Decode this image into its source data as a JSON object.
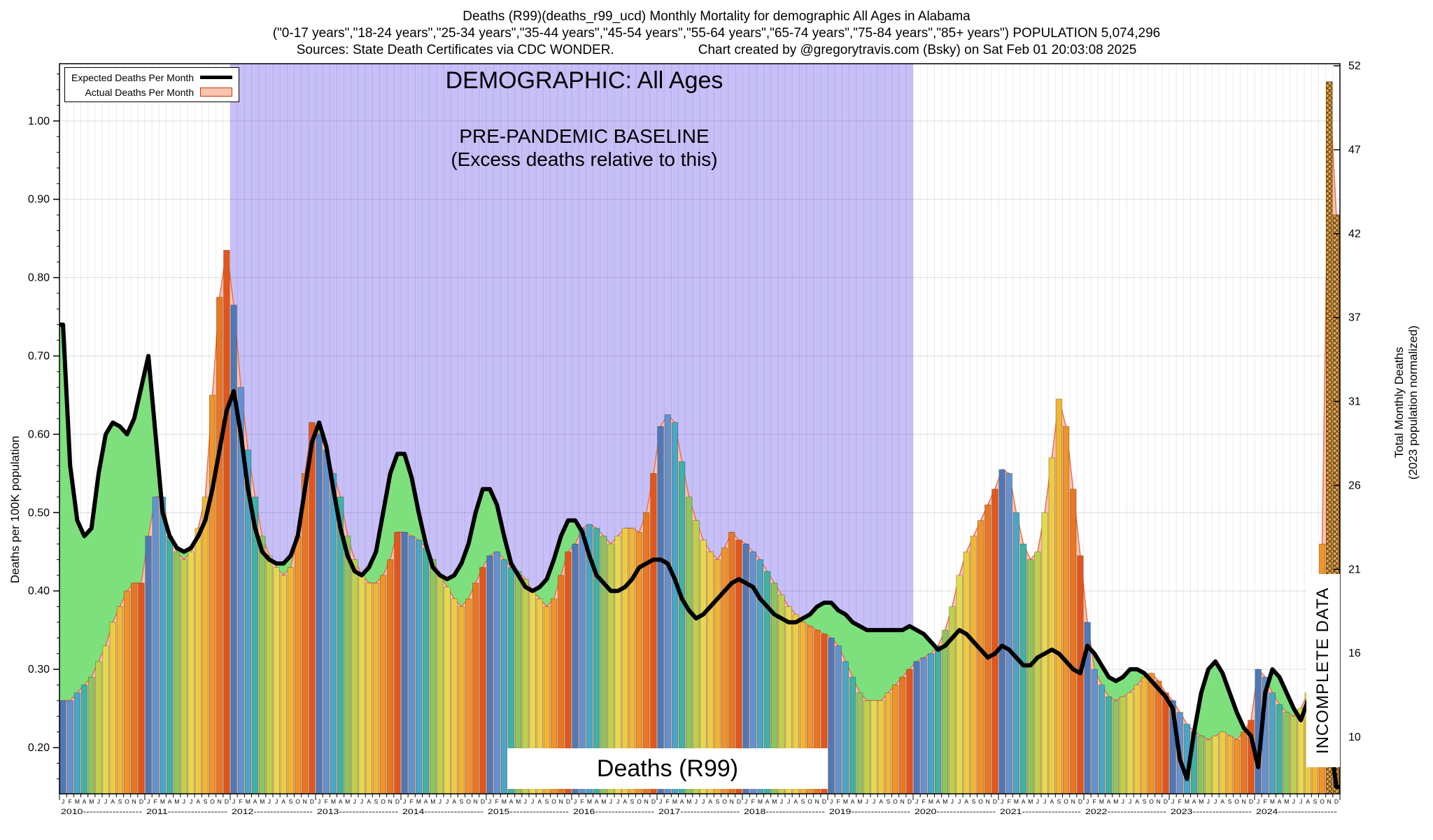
{
  "header": {
    "title_line1": "Deaths (R99)(deaths_r99_ucd) Monthly Mortality for demographic All Ages in Alabama",
    "title_line2": "(\"0-17 years\",\"18-24 years\",\"25-34 years\",\"35-44 years\",\"45-54 years\",\"55-64 years\",\"65-74 years\",\"75-84 years\",\"85+ years\") POPULATION 5,074,296",
    "sources": "Sources: State Death Certificates via CDC WONDER.",
    "credit": "Chart created by @gregorytravis.com (Bsky) on Sat Feb 01 20:03:08 2025"
  },
  "legend": {
    "expected_label": "Expected Deaths Per Month",
    "actual_label": "Actual Deaths Per Month"
  },
  "annotations": {
    "demographic": "DEMOGRAPHIC: All Ages",
    "baseline_line1": "PRE-PANDEMIC BASELINE",
    "baseline_line2": "(Excess deaths relative to this)",
    "series_label": "Deaths (R99)",
    "incomplete_label": "INCOMPLETE DATA"
  },
  "axes": {
    "left_label": "Deaths per 100K population",
    "right_label_line1": "Total Monthly Deaths",
    "right_label_line2": "(2023 population normalized)",
    "left_ticks": [
      "0.20",
      "0.30",
      "0.40",
      "0.50",
      "0.60",
      "0.70",
      "0.80",
      "0.90",
      "1.00"
    ],
    "right_ticks": [
      "52",
      "47",
      "42",
      "37",
      "31",
      "26",
      "21",
      "16",
      "10"
    ]
  },
  "colors": {
    "baseline_bg": "#c7bff7",
    "deficit_green": "#7de07d",
    "actual_fill": "#f9c4b0",
    "actual_stroke": "#e8704f",
    "expected_line": "#000000",
    "incomplete_bg": "#e2a24a",
    "incomplete_line": "#5a3a08"
  },
  "chart_data": {
    "type": "bar",
    "title": "Deaths (R99) Monthly Mortality, All Ages, Alabama",
    "x_start": "2010-01",
    "x_end": "2024-12",
    "years": [
      "2010",
      "2011",
      "2012",
      "2013",
      "2014",
      "2015",
      "2016",
      "2017",
      "2018",
      "2019",
      "2020",
      "2021",
      "2022",
      "2023",
      "2024"
    ],
    "month_letters": "JFMAMJJASOND",
    "ylim_left": [
      0.14,
      1.07
    ],
    "ylabel_left": "Deaths per 100K population",
    "ylabel_right": "Total Monthly Deaths (2023 population normalized)",
    "baseline_region": {
      "label": "PRE-PANDEMIC BASELINE",
      "start_index": 24,
      "end_index": 120
    },
    "incomplete_from_index": 178,
    "month_palette": [
      "#4e79b9",
      "#6292d2",
      "#4aa6c9",
      "#3db3a5",
      "#8cc55e",
      "#bdd14b",
      "#e3da4e",
      "#eecc41",
      "#f0b636",
      "#ee9428",
      "#e97620",
      "#e2561b"
    ],
    "series": [
      {
        "name": "Actual Deaths Per Month",
        "type": "bar",
        "values": [
          0.26,
          0.26,
          0.27,
          0.28,
          0.29,
          0.31,
          0.33,
          0.36,
          0.38,
          0.4,
          0.41,
          0.41,
          0.47,
          0.52,
          0.52,
          0.47,
          0.45,
          0.44,
          0.45,
          0.48,
          0.52,
          0.65,
          0.775,
          0.835,
          0.765,
          0.66,
          0.58,
          0.52,
          0.47,
          0.445,
          0.43,
          0.42,
          0.43,
          0.47,
          0.55,
          0.615,
          0.6,
          0.58,
          0.55,
          0.52,
          0.47,
          0.44,
          0.42,
          0.41,
          0.41,
          0.42,
          0.44,
          0.475,
          0.475,
          0.47,
          0.465,
          0.455,
          0.44,
          0.42,
          0.405,
          0.39,
          0.38,
          0.39,
          0.41,
          0.43,
          0.445,
          0.45,
          0.44,
          0.43,
          0.425,
          0.415,
          0.4,
          0.39,
          0.38,
          0.39,
          0.42,
          0.45,
          0.46,
          0.48,
          0.485,
          0.48,
          0.47,
          0.46,
          0.47,
          0.48,
          0.48,
          0.475,
          0.5,
          0.55,
          0.61,
          0.625,
          0.615,
          0.565,
          0.52,
          0.49,
          0.465,
          0.45,
          0.44,
          0.455,
          0.475,
          0.465,
          0.46,
          0.45,
          0.44,
          0.425,
          0.41,
          0.395,
          0.38,
          0.37,
          0.36,
          0.355,
          0.35,
          0.345,
          0.34,
          0.33,
          0.31,
          0.29,
          0.27,
          0.26,
          0.26,
          0.26,
          0.27,
          0.28,
          0.29,
          0.3,
          0.31,
          0.315,
          0.32,
          0.33,
          0.35,
          0.38,
          0.42,
          0.45,
          0.47,
          0.49,
          0.51,
          0.53,
          0.555,
          0.55,
          0.5,
          0.46,
          0.44,
          0.45,
          0.5,
          0.57,
          0.645,
          0.61,
          0.53,
          0.445,
          0.36,
          0.3,
          0.28,
          0.265,
          0.26,
          0.265,
          0.27,
          0.28,
          0.29,
          0.295,
          0.285,
          0.27,
          0.26,
          0.245,
          0.23,
          0.22,
          0.215,
          0.21,
          0.215,
          0.22,
          0.215,
          0.21,
          0.22,
          0.235,
          0.3,
          0.29,
          0.27,
          0.255,
          0.245,
          0.24,
          0.25,
          0.27,
          0.31,
          0.46,
          1.05,
          0.88
        ]
      },
      {
        "name": "Expected Deaths Per Month",
        "type": "line",
        "values": [
          0.74,
          0.56,
          0.49,
          0.47,
          0.48,
          0.55,
          0.6,
          0.615,
          0.61,
          0.6,
          0.62,
          0.66,
          0.7,
          0.6,
          0.5,
          0.47,
          0.455,
          0.45,
          0.455,
          0.47,
          0.49,
          0.53,
          0.58,
          0.63,
          0.655,
          0.6,
          0.53,
          0.48,
          0.45,
          0.44,
          0.435,
          0.435,
          0.445,
          0.47,
          0.53,
          0.59,
          0.615,
          0.585,
          0.53,
          0.48,
          0.445,
          0.425,
          0.42,
          0.43,
          0.45,
          0.5,
          0.55,
          0.575,
          0.575,
          0.545,
          0.5,
          0.46,
          0.43,
          0.42,
          0.415,
          0.42,
          0.435,
          0.46,
          0.5,
          0.53,
          0.53,
          0.51,
          0.47,
          0.435,
          0.42,
          0.405,
          0.4,
          0.405,
          0.415,
          0.44,
          0.47,
          0.49,
          0.49,
          0.475,
          0.445,
          0.42,
          0.41,
          0.4,
          0.4,
          0.405,
          0.415,
          0.43,
          0.435,
          0.44,
          0.44,
          0.435,
          0.415,
          0.39,
          0.375,
          0.365,
          0.37,
          0.38,
          0.39,
          0.4,
          0.41,
          0.415,
          0.41,
          0.405,
          0.39,
          0.38,
          0.37,
          0.365,
          0.36,
          0.36,
          0.365,
          0.37,
          0.38,
          0.385,
          0.385,
          0.375,
          0.37,
          0.36,
          0.355,
          0.35,
          0.35,
          0.35,
          0.35,
          0.35,
          0.35,
          0.355,
          0.35,
          0.345,
          0.335,
          0.325,
          0.33,
          0.34,
          0.35,
          0.345,
          0.335,
          0.325,
          0.315,
          0.32,
          0.33,
          0.325,
          0.315,
          0.305,
          0.305,
          0.315,
          0.32,
          0.325,
          0.32,
          0.31,
          0.3,
          0.295,
          0.33,
          0.32,
          0.305,
          0.29,
          0.285,
          0.29,
          0.3,
          0.3,
          0.295,
          0.285,
          0.275,
          0.265,
          0.25,
          0.185,
          0.16,
          0.22,
          0.27,
          0.3,
          0.31,
          0.295,
          0.27,
          0.245,
          0.225,
          0.215,
          0.175,
          0.27,
          0.3,
          0.29,
          0.27,
          0.25,
          0.235,
          0.26,
          0.29,
          0.27,
          0.22,
          0.15
        ]
      }
    ]
  }
}
